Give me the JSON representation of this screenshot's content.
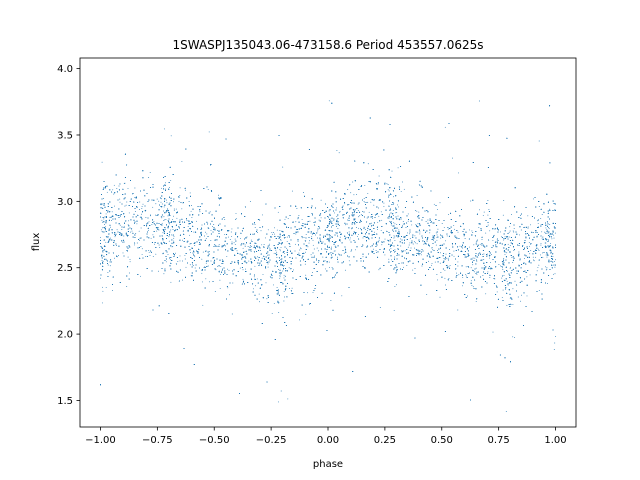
{
  "chart_data": {
    "type": "scatter",
    "title": "1SWASPJ135043.06-473158.6 Period 453557.0625s",
    "xlabel": "phase",
    "ylabel": "flux",
    "xlim": [
      -1.09,
      1.09
    ],
    "ylim": [
      1.3,
      4.08
    ],
    "x_ticks": [
      -1.0,
      -0.75,
      -0.5,
      -0.25,
      0.0,
      0.25,
      0.5,
      0.75,
      1.0
    ],
    "x_tick_labels": [
      "−1.00",
      "−0.75",
      "−0.50",
      "−0.25",
      "0.00",
      "0.25",
      "0.50",
      "0.75",
      "1.00"
    ],
    "y_ticks": [
      1.5,
      2.0,
      2.5,
      3.0,
      3.5,
      4.0
    ],
    "y_tick_labels": [
      "1.5",
      "2.0",
      "2.5",
      "3.0",
      "3.5",
      "4.0"
    ],
    "grid": false,
    "legend": "none",
    "marker_color": "#1f77b4",
    "series": [
      {
        "phase": [
          -1.0,
          -0.875,
          -0.75,
          -0.625,
          -0.5,
          -0.375,
          -0.25,
          -0.21,
          -0.125,
          0.0,
          0.125,
          0.25,
          0.375,
          0.5,
          0.625,
          0.75,
          0.79,
          0.875,
          1.0
        ],
        "flux_median": [
          2.75,
          2.8,
          2.82,
          2.75,
          2.65,
          2.6,
          2.58,
          2.55,
          2.65,
          2.72,
          2.82,
          2.82,
          2.75,
          2.65,
          2.6,
          2.58,
          2.55,
          2.65,
          2.72
        ],
        "flux_scatter": [
          0.18,
          0.17,
          0.18,
          0.18,
          0.16,
          0.15,
          0.17,
          0.2,
          0.16,
          0.16,
          0.17,
          0.18,
          0.18,
          0.16,
          0.15,
          0.17,
          0.2,
          0.16,
          0.16
        ]
      }
    ]
  }
}
